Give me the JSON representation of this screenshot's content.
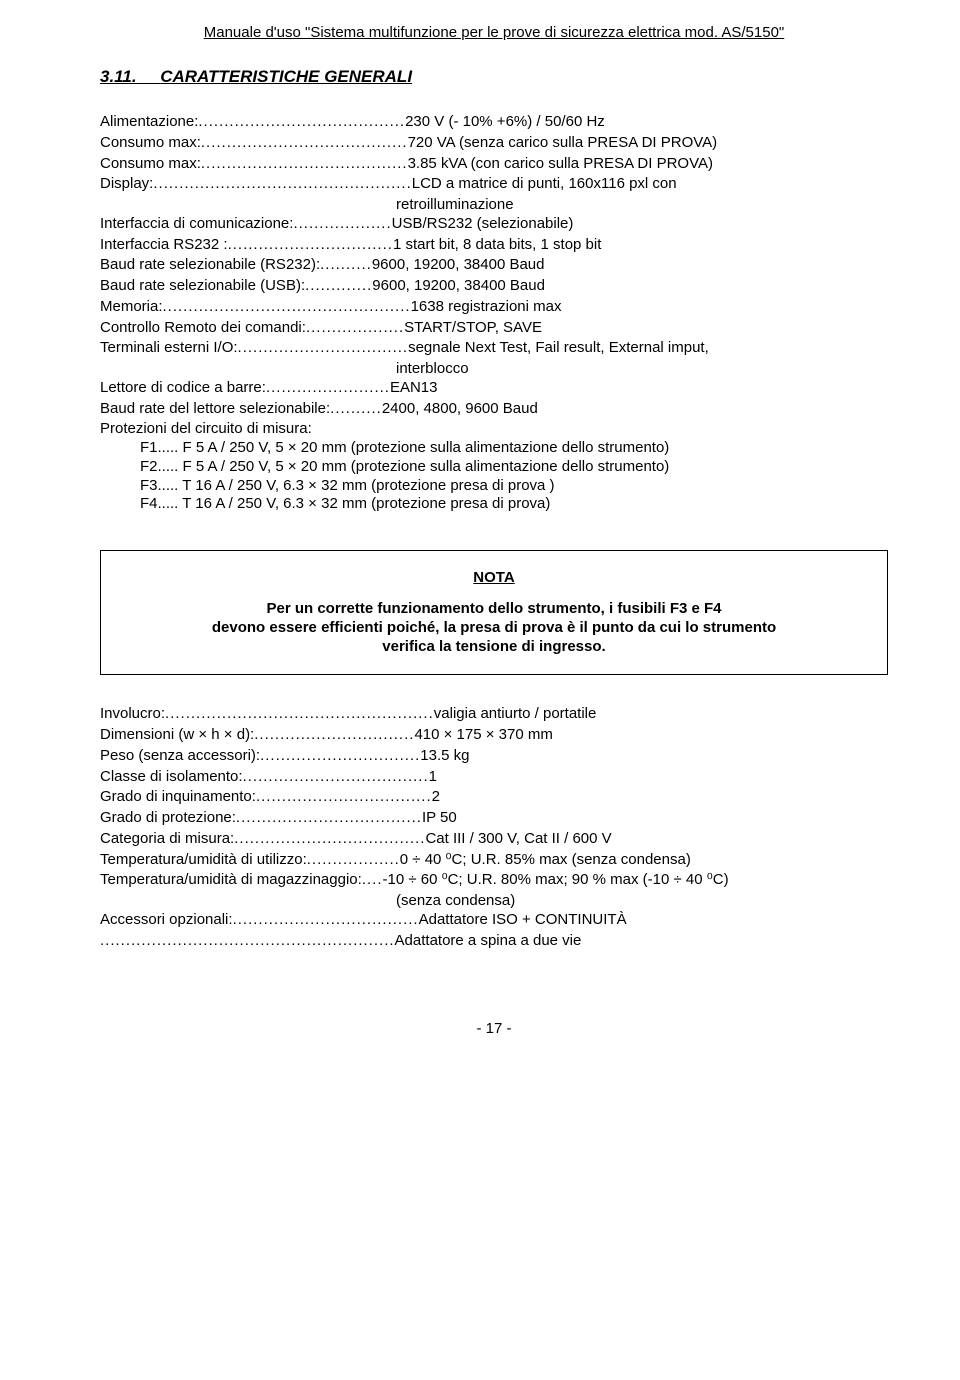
{
  "header": "Manuale d'uso \"Sistema multifunzione per le prove di sicurezza elettrica mod. AS/5150\"",
  "section_number": "3.11.",
  "section_title": "CARATTERISTICHE GENERALI",
  "specs1": [
    {
      "label": "Alimentazione:",
      "dots": "........................................",
      "value": "230 V (- 10% +6%) / 50/60 Hz"
    },
    {
      "label": "Consumo max:",
      "dots": "........................................",
      "value": "720 VA  (senza carico sulla PRESA DI PROVA)"
    },
    {
      "label": "Consumo max:",
      "dots": "........................................",
      "value": "3.85 kVA  (con carico sulla PRESA DI PROVA)"
    },
    {
      "label": "Display:",
      "dots": "..................................................",
      "value": "LCD a matrice di punti, 160x116 pxl con"
    }
  ],
  "display_extra": "retroilluminazione",
  "specs2": [
    {
      "label": "Interfaccia di comunicazione:",
      "dots": "...................",
      "value": "USB/RS232 (selezionabile)"
    },
    {
      "label": "Interfaccia RS232 :",
      "dots": "................................",
      "value": "1 start bit, 8 data bits, 1 stop bit"
    },
    {
      "label": "Baud rate selezionabile (RS232):",
      "dots": "..........",
      "value": "9600, 19200, 38400 Baud"
    },
    {
      "label": "Baud rate selezionabile (USB):",
      "dots": ".............",
      "value": "9600, 19200, 38400 Baud"
    },
    {
      "label": "Memoria:",
      "dots": "................................................",
      "value": "1638 registrazioni max"
    },
    {
      "label": "Controllo Remoto dei comandi:",
      "dots": "...................",
      "value": "START/STOP, SAVE"
    },
    {
      "label": "Terminali esterni I/O:",
      "dots": ".................................",
      "value": "segnale Next Test, Fail result, External imput,"
    }
  ],
  "terminali_extra": "interblocco",
  "specs3": [
    {
      "label": "Lettore di codice a barre:",
      "dots": "........................",
      "value": "EAN13"
    },
    {
      "label": "Baud rate del lettore selezionabile:",
      "dots": "..........",
      "value": "2400, 4800, 9600  Baud"
    }
  ],
  "protezioni_label": "Protezioni del circuito di misura:",
  "fuses": [
    "F1..... F 5 A / 250 V, 5 × 20 mm (protezione sulla alimentazione dello strumento)",
    "F2..... F 5 A / 250 V, 5 × 20 mm (protezione sulla alimentazione dello strumento)",
    "F3..... T 16 A / 250 V, 6.3 × 32 mm (protezione presa di prova )",
    "F4..... T 16 A / 250 V, 6.3 × 32 mm (protezione presa di prova)"
  ],
  "nota_title": "NOTA",
  "nota_body_1": "Per un corrette funzionamento dello strumento, i fusibili F3 e F4",
  "nota_body_2": "devono essere efficienti poiché, la presa di prova è il punto da cui lo strumento",
  "nota_body_3": "verifica la tensione di ingresso.",
  "specs4": [
    {
      "label": "Involucro:",
      "dots": "....................................................",
      "value": "valigia antiurto / portatile"
    },
    {
      "label": "Dimensioni (w × h × d):",
      "dots": "...............................",
      "value": "410 × 175 × 370 mm"
    },
    {
      "label": "Peso (senza accessori):",
      "dots": "...............................",
      "value": "13.5 kg"
    },
    {
      "label": "Classe di isolamento:",
      "dots": "....................................",
      "value": "1"
    },
    {
      "label": "Grado di inquinamento:",
      "dots": "..................................",
      "value": "2"
    },
    {
      "label": "Grado di protezione:",
      "dots": "....................................",
      "value": "IP 50"
    },
    {
      "label": "Categoria di misura:",
      "dots": ".....................................",
      "value": "Cat III / 300 V, Cat II / 600 V"
    },
    {
      "label": "Temperatura/umidità di utilizzo:",
      "dots": "..................",
      "value": "0 ÷ 40 ⁰C; U.R. 85% max (senza condensa)"
    },
    {
      "label": "Temperatura/umidità di magazzinaggio:",
      "dots": "....",
      "value": "-10 ÷ 60 ⁰C; U.R. 80% max; 90 % max (-10 ÷ 40 ⁰C)"
    }
  ],
  "magazz_extra": "(senza condensa)",
  "specs5": [
    {
      "label": "Accessori opzionali:",
      "dots": "....................................",
      "value": "Adattatore ISO + CONTINUITÀ"
    }
  ],
  "accessori_extra_dots": ".........................................................",
  "accessori_extra_value": "Adattatore a spina a due vie",
  "footer": "- 17 -"
}
